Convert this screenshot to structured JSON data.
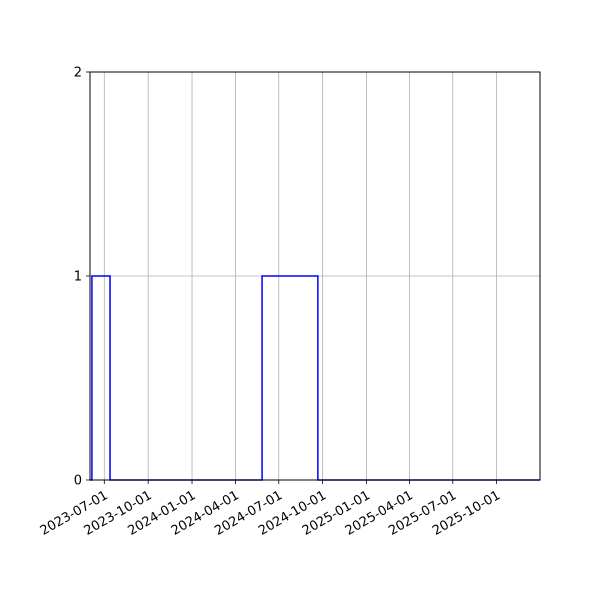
{
  "chart_data": {
    "type": "line",
    "step": true,
    "title": "",
    "xlabel": "",
    "ylabel": "",
    "x_axis": "date",
    "xlim": [
      "2023-06-01",
      "2025-12-31"
    ],
    "ylim": [
      0,
      2
    ],
    "x_ticks": [
      "2023-07-01",
      "2023-10-01",
      "2024-01-01",
      "2024-04-01",
      "2024-07-01",
      "2024-10-01",
      "2025-01-01",
      "2025-04-01",
      "2025-07-01",
      "2025-10-01"
    ],
    "y_ticks": [
      0,
      1,
      2
    ],
    "grid": true,
    "legend": "none",
    "series": [
      {
        "color": "#0000ff",
        "points": [
          {
            "x": "2023-06-01",
            "y": 0
          },
          {
            "x": "2023-06-05",
            "y": 0
          },
          {
            "x": "2023-06-05",
            "y": 1
          },
          {
            "x": "2023-07-13",
            "y": 1
          },
          {
            "x": "2023-07-13",
            "y": 0
          },
          {
            "x": "2024-05-27",
            "y": 0
          },
          {
            "x": "2024-05-27",
            "y": 1
          },
          {
            "x": "2024-09-21",
            "y": 1
          },
          {
            "x": "2024-09-21",
            "y": 0
          },
          {
            "x": "2025-12-31",
            "y": 0
          }
        ]
      }
    ]
  }
}
